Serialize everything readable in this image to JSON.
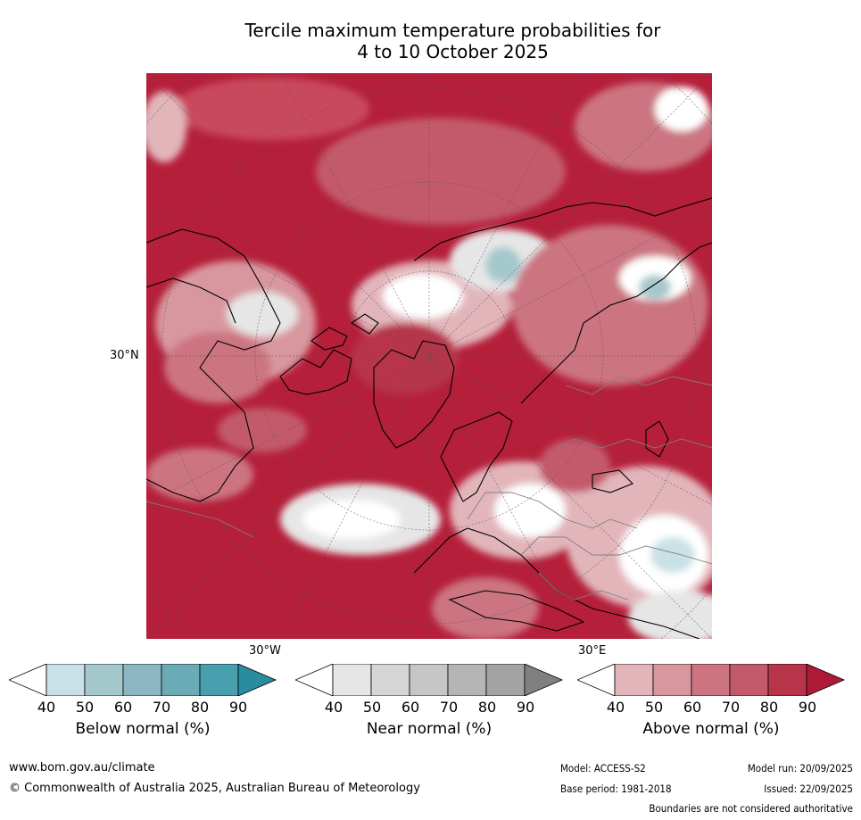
{
  "title": {
    "line1": "Tercile maximum temperature probabilities for",
    "line2": "4 to 10 October 2025"
  },
  "map": {
    "lat_labels": [
      "30°N"
    ],
    "lon_labels": [
      "30°W",
      "30°E"
    ],
    "colors": {
      "ocean_dominant": "#b51f3a",
      "land_outline": "#000000",
      "border_outline": "#808080"
    }
  },
  "colorbars": [
    {
      "label": "Below normal (%)",
      "ticks": [
        "40",
        "50",
        "60",
        "70",
        "80",
        "90"
      ],
      "colors": [
        "#ffffff",
        "#c8e1e6",
        "#a5c8cd",
        "#8ab7c3",
        "#6aabb5",
        "#48a0af",
        "#2a8c9e"
      ]
    },
    {
      "label": "Near normal (%)",
      "ticks": [
        "40",
        "50",
        "60",
        "70",
        "80",
        "90"
      ],
      "colors": [
        "#ffffff",
        "#e6e6e6",
        "#d6d6d6",
        "#c6c6c6",
        "#b5b5b5",
        "#a3a3a3",
        "#808080"
      ]
    },
    {
      "label": "Above normal (%)",
      "ticks": [
        "40",
        "50",
        "60",
        "70",
        "80",
        "90"
      ],
      "colors": [
        "#ffffff",
        "#e2b5bb",
        "#d8979f",
        "#cc7580",
        "#c35a6a",
        "#b83449",
        "#ae1a36"
      ]
    }
  ],
  "footer": {
    "url": "www.bom.gov.au/climate",
    "copyright": "© Commonwealth of Australia 2025, Australian Bureau of Meteorology",
    "model": "Model: ACCESS-S2",
    "base_period": "Base period: 1981-2018",
    "model_run": "Model run: 20/09/2025",
    "issued": "Issued: 22/09/2025",
    "disclaimer": "Boundaries are not considered authoritative"
  }
}
